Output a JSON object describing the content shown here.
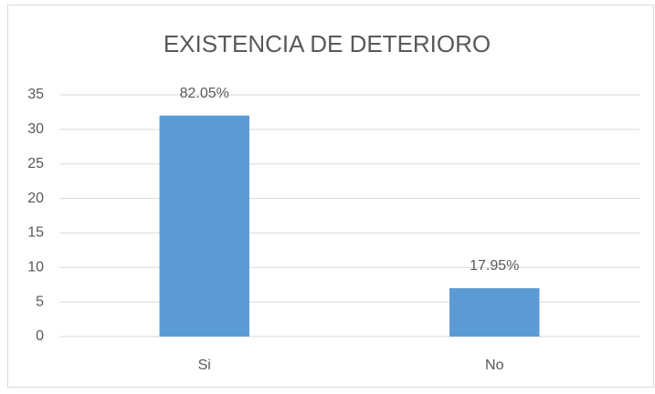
{
  "chart_data": {
    "type": "bar",
    "title": "EXISTENCIA DE DETERIORO",
    "categories": [
      "Si",
      "No"
    ],
    "values": [
      32,
      7
    ],
    "value_labels": [
      "82.05%",
      "17.95%"
    ],
    "color": "#5b9bd5",
    "ylim": [
      0,
      35
    ],
    "yticks": [
      0,
      5,
      10,
      15,
      20,
      25,
      30,
      35
    ],
    "grid": true
  }
}
